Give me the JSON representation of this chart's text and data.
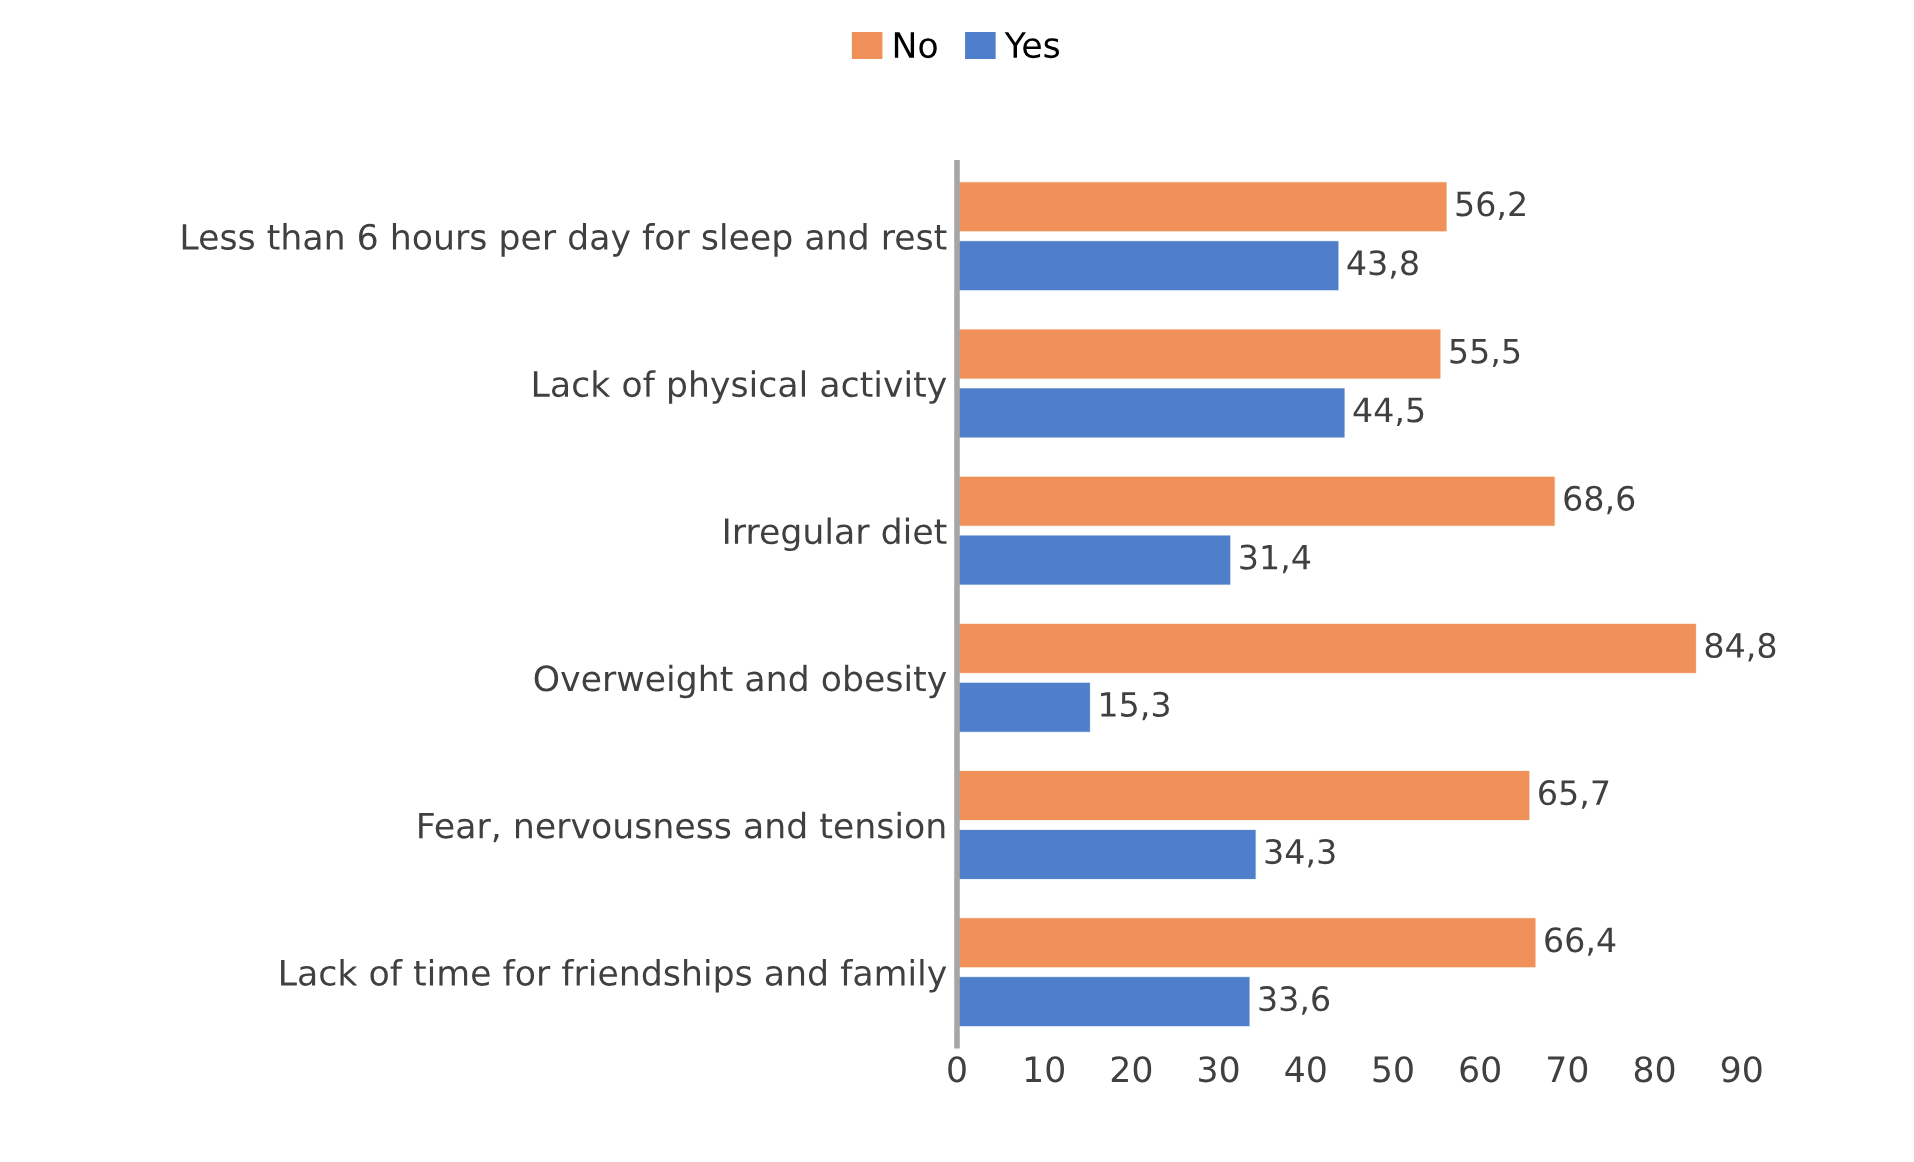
{
  "chart_data": {
    "type": "bar",
    "orientation": "horizontal",
    "categories": [
      "Less than 6 hours per day for sleep and rest",
      "Lack of physical activity",
      "Irregular diet",
      "Overweight and obesity",
      "Fear, nervousness and tension",
      "Lack of time for friendships and family"
    ],
    "series": [
      {
        "name": "No",
        "color": "#f0915a",
        "values": [
          56.2,
          55.5,
          68.6,
          84.8,
          65.7,
          66.4
        ],
        "value_labels": [
          "56,2",
          "55,5",
          "68,6",
          "84,8",
          "65,7",
          "66,4"
        ]
      },
      {
        "name": "Yes",
        "color": "#4f7fcb",
        "values": [
          43.8,
          44.5,
          31.4,
          15.3,
          34.3,
          33.6
        ],
        "value_labels": [
          "43,8",
          "44,5",
          "31,4",
          "15,3",
          "34,3",
          "33,6"
        ]
      }
    ],
    "xlim": [
      0,
      90
    ],
    "xticks": [
      0,
      10,
      20,
      30,
      40,
      50,
      60,
      70,
      80,
      90
    ],
    "grid": false,
    "legend": "top"
  }
}
